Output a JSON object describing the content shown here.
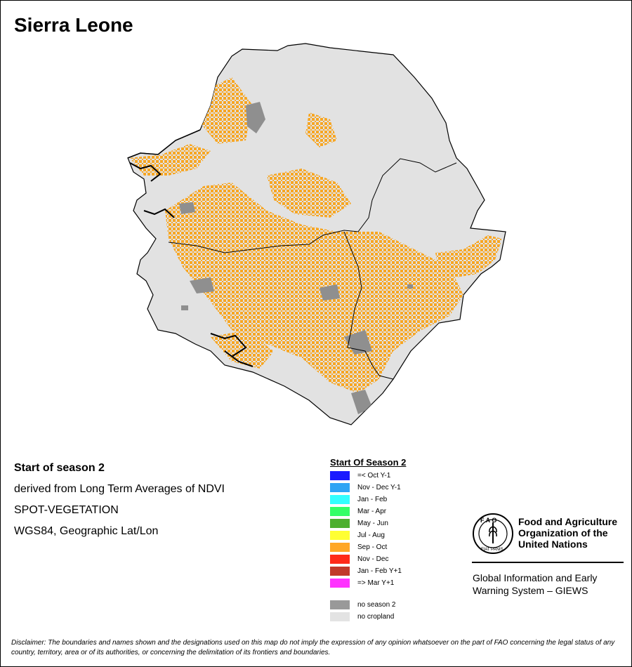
{
  "title": "Sierra Leone",
  "info_lines": [
    "Start of season 2",
    "derived from Long Term Averages of NDVI",
    "SPOT-VEGETATION",
    "WGS84, Geographic Lat/Lon"
  ],
  "legend": {
    "title": "Start Of Season 2",
    "items": [
      {
        "label": "=< Oct Y-1",
        "color": "#1a1aff"
      },
      {
        "label": "Nov - Dec Y-1",
        "color": "#2fa4f4"
      },
      {
        "label": "Jan - Feb",
        "color": "#33ffff"
      },
      {
        "label": "Mar - Apr",
        "color": "#33ff66"
      },
      {
        "label": "May - Jun",
        "color": "#4caf2f"
      },
      {
        "label": "Jul - Aug",
        "color": "#ffff33"
      },
      {
        "label": "Sep - Oct",
        "color": "#ffa726"
      },
      {
        "label": "Nov - Dec",
        "color": "#ff2a1a"
      },
      {
        "label": "Jan - Feb Y+1",
        "color": "#c1392b"
      },
      {
        "label": "=> Mar Y+1",
        "color": "#ff33ff"
      }
    ],
    "extra_items": [
      {
        "label": "no season 2",
        "color": "#999999"
      },
      {
        "label": "no cropland",
        "color": "#e3e3e3"
      }
    ]
  },
  "map_colors": {
    "land": "#e2e2e2",
    "crop": "#f7a623",
    "noseason": "#8f8f8f",
    "outline": "#000000"
  },
  "org": {
    "name": "Food and Agriculture Organization of the United Nations",
    "logo_text": "FAO",
    "motto": "FIAT PANIS",
    "program": "Global Information and Early Warning System – GIEWS"
  },
  "disclaimer": "Disclaimer: The boundaries and names shown and the designations used on this map do not imply the expression of any opinion whatsoever on the part of FAO concerning the legal status of any country, territory, area or of its authorities, or concerning the delimitation of its frontiers and boundaries."
}
